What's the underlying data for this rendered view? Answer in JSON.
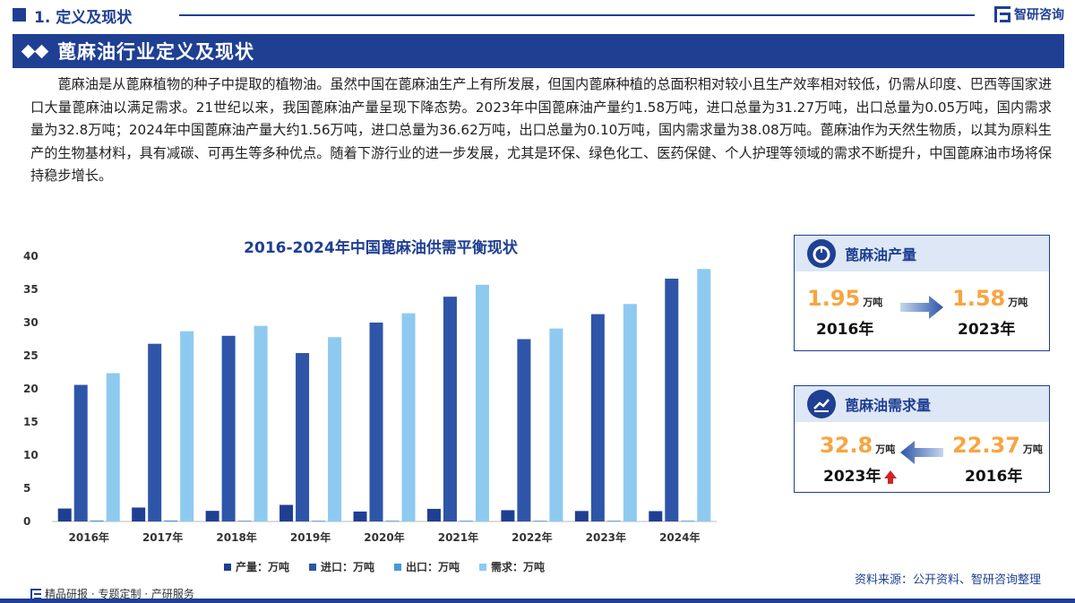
{
  "header": {
    "section_title": "1. 定义及现状",
    "brand": "智研咨询"
  },
  "banner": {
    "title": "蓖麻油行业定义及现状"
  },
  "intro": {
    "text": "蓖麻油是从蓖麻植物的种子中提取的植物油。虽然中国在蓖麻油生产上有所发展，但国内蓖麻种植的总面积相对较小且生产效率相对较低，仍需从印度、巴西等国家进口大量蓖麻油以满足需求。21世纪以来，我国蓖麻油产量呈现下降态势。2023年中国蓖麻油产量约1.58万吨，进口总量为31.27万吨，出口总量为0.05万吨，国内需求量为32.8万吨；2024年中国蓖麻油产量大约1.56万吨，进口总量为36.62万吨，出口总量为0.10万吨，国内需求量为38.08万吨。蓖麻油作为天然生物质，以其为原料生产的生物基材料，具有减碳、可再生等多种优点。随着下游行业的进一步发展，尤其是环保、绿色化工、医药保健、个人护理等领域的需求不断提升，中国蓖麻油市场将保持稳步增长。"
  },
  "chart_data": {
    "type": "bar",
    "title": "2016-2024年中国蓖麻油供需平衡现状",
    "categories": [
      "2016年",
      "2017年",
      "2018年",
      "2019年",
      "2020年",
      "2021年",
      "2022年",
      "2023年",
      "2024年"
    ],
    "series": [
      {
        "name": "产量：万吨",
        "color": "#1f3f93",
        "values": [
          1.95,
          2.1,
          1.6,
          2.5,
          1.5,
          1.9,
          1.7,
          1.58,
          1.56
        ]
      },
      {
        "name": "进口：万吨",
        "color": "#2e55a8",
        "values": [
          20.6,
          26.8,
          28.0,
          25.4,
          30.0,
          33.9,
          27.5,
          31.27,
          36.62
        ]
      },
      {
        "name": "出口：万吨",
        "color": "#4a97d8",
        "values": [
          0.15,
          0.15,
          0.05,
          0.1,
          0.1,
          0.1,
          0.1,
          0.05,
          0.1
        ]
      },
      {
        "name": "需求：万吨",
        "color": "#8ecaf0",
        "values": [
          22.37,
          28.7,
          29.5,
          27.8,
          31.4,
          35.7,
          29.1,
          32.8,
          38.08
        ]
      }
    ],
    "ylim": [
      0,
      40
    ],
    "yticks": [
      0,
      5,
      10,
      15,
      20,
      25,
      30,
      35,
      40
    ],
    "legend": "bottom",
    "grid": false
  },
  "cards": {
    "production": {
      "title": "蓖麻油产量",
      "from_value": "1.95",
      "from_unit": "万吨",
      "from_year": "2016年",
      "to_value": "1.58",
      "to_unit": "万吨",
      "to_year": "2023年"
    },
    "demand": {
      "title": "蓖麻油需求量",
      "left_value": "32.8",
      "left_unit": "万吨",
      "left_year": "2023年",
      "right_value": "22.37",
      "right_unit": "万吨",
      "right_year": "2016年"
    }
  },
  "footer": {
    "left": "精品研报 · 专题定制 · 产研服务",
    "source": "资料来源：公开资料、智研咨询整理"
  },
  "colors": {
    "brand_blue": "#1f3f93",
    "accent_orange": "#f7a541",
    "up_red": "#d0232a"
  }
}
